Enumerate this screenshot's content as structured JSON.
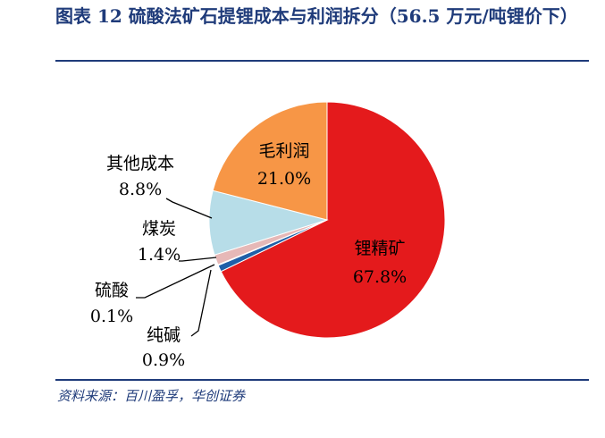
{
  "title": "图表 12  硫酸法矿石提锂成本与利润拆分（56.5 万元/吨锂价下）",
  "source": "资料来源：百川盈孚，华创证券",
  "chart_data": {
    "type": "pie",
    "title": "图表 12  硫酸法矿石提锂成本与利润拆分（56.5 万元/吨锂价下）",
    "slices": [
      {
        "name": "锂精矿",
        "value": 67.8,
        "label": "67.8%",
        "color": "#e41a1c"
      },
      {
        "name": "纯碱",
        "value": 0.9,
        "label": "0.9%",
        "color": "#1f5fa8"
      },
      {
        "name": "硫酸",
        "value": 0.1,
        "label": "0.1%",
        "color": "#d9534f"
      },
      {
        "name": "煤炭",
        "value": 1.4,
        "label": "1.4%",
        "color": "#e6b8b7"
      },
      {
        "name": "其他成本",
        "value": 8.8,
        "label": "8.8%",
        "color": "#b7dde8"
      },
      {
        "name": "毛利润",
        "value": 21.0,
        "label": "21.0%",
        "color": "#f79646"
      }
    ]
  }
}
